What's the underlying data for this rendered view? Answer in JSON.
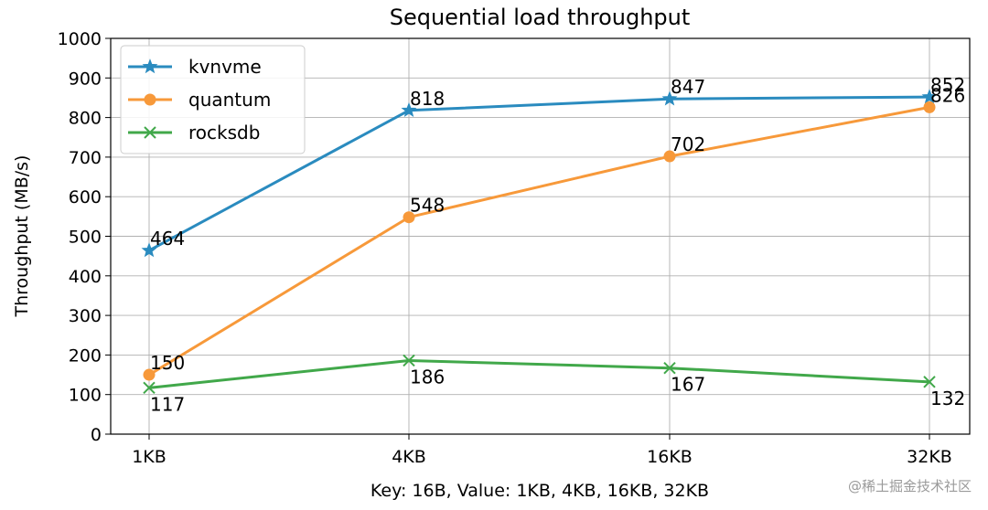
{
  "chart_data": {
    "type": "line",
    "title": "Sequential load throughput",
    "xlabel": "Key: 16B, Value: 1KB, 4KB, 16KB, 32KB",
    "ylabel": "Throughput (MB/s)",
    "categories": [
      "1KB",
      "4KB",
      "16KB",
      "32KB"
    ],
    "ylim": [
      0,
      1000
    ],
    "yticks": [
      0,
      100,
      200,
      300,
      400,
      500,
      600,
      700,
      800,
      900,
      1000
    ],
    "ytick_labels": [
      "0",
      "100",
      "200",
      "300",
      "400",
      "500",
      "600",
      "700",
      "800",
      "900",
      "1000"
    ],
    "grid": true,
    "legend_position": "top-left",
    "series": [
      {
        "name": "kvnvme",
        "values": [
          464,
          818,
          847,
          852
        ],
        "labels": [
          "464",
          "818",
          "847",
          "852"
        ],
        "color": "#2a8bbf",
        "marker": "star",
        "label_side": "above"
      },
      {
        "name": "quantum",
        "values": [
          150,
          548,
          702,
          826
        ],
        "labels": [
          "150",
          "548",
          "702",
          "826"
        ],
        "color": "#f7993a",
        "marker": "circle",
        "label_side": "above"
      },
      {
        "name": "rocksdb",
        "values": [
          117,
          186,
          167,
          132
        ],
        "labels": [
          "117",
          "186",
          "167",
          "132"
        ],
        "color": "#41a84a",
        "marker": "x",
        "label_side": "below"
      }
    ]
  },
  "watermark": "@稀土掘金技术社区"
}
